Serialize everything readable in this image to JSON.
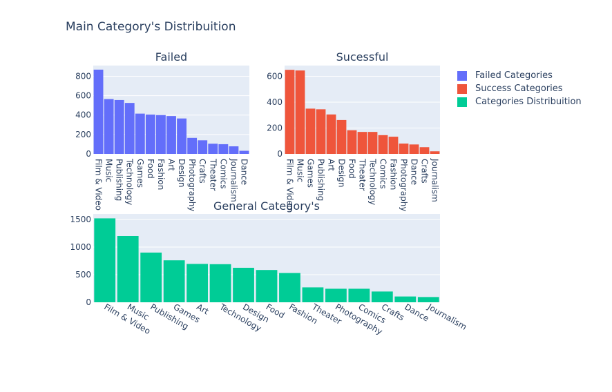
{
  "title": "Main Category's Distribuition",
  "legend": {
    "placement": "right",
    "items": [
      {
        "label": "Failed Categories",
        "color": "#636efa"
      },
      {
        "label": "Success Categories",
        "color": "#ef553b"
      },
      {
        "label": "Categories Distribuition",
        "color": "#00cc96"
      }
    ]
  },
  "plot_bg": "#e5ecf6",
  "text_color": "#2a3f5f",
  "chart_data": [
    {
      "type": "bar",
      "title": "Failed",
      "series_name": "Failed Categories",
      "color": "#636efa",
      "categories": [
        "Film & Video",
        "Music",
        "Publishing",
        "Technology",
        "Games",
        "Food",
        "Fashion",
        "Art",
        "Design",
        "Photography",
        "Crafts",
        "Theater",
        "Comics",
        "Journalism",
        "Dance"
      ],
      "values": [
        868,
        565,
        555,
        525,
        415,
        405,
        400,
        390,
        365,
        165,
        140,
        105,
        100,
        78,
        32
      ],
      "ylim": [
        0,
        910
      ],
      "yticks": [
        0,
        200,
        400,
        600,
        800
      ],
      "grid": true
    },
    {
      "type": "bar",
      "title": "Sucessful",
      "series_name": "Success Categories",
      "color": "#ef553b",
      "categories": [
        "Film & Video",
        "Music",
        "Games",
        "Publishing",
        "Art",
        "Design",
        "Food",
        "Theater",
        "Technology",
        "Comics",
        "Fashion",
        "Photography",
        "Dance",
        "Crafts",
        "Journalism"
      ],
      "values": [
        650,
        645,
        350,
        345,
        305,
        262,
        183,
        170,
        170,
        145,
        133,
        80,
        73,
        52,
        20
      ],
      "ylim": [
        0,
        683
      ],
      "yticks": [
        0,
        200,
        400,
        600
      ],
      "grid": true
    },
    {
      "type": "bar",
      "title": "General Category's",
      "series_name": "Categories Distribuition",
      "color": "#00cc96",
      "categories": [
        "Film & Video",
        "Music",
        "Publishing",
        "Games",
        "Art",
        "Technology",
        "Design",
        "Food",
        "Fashion",
        "Theater",
        "Photography",
        "Comics",
        "Crafts",
        "Dance",
        "Journalism"
      ],
      "values": [
        1520,
        1200,
        900,
        760,
        695,
        690,
        625,
        585,
        530,
        270,
        245,
        245,
        195,
        105,
        95
      ],
      "ylim": [
        0,
        1600
      ],
      "yticks": [
        0,
        500,
        1000,
        1500
      ],
      "grid": true
    }
  ]
}
